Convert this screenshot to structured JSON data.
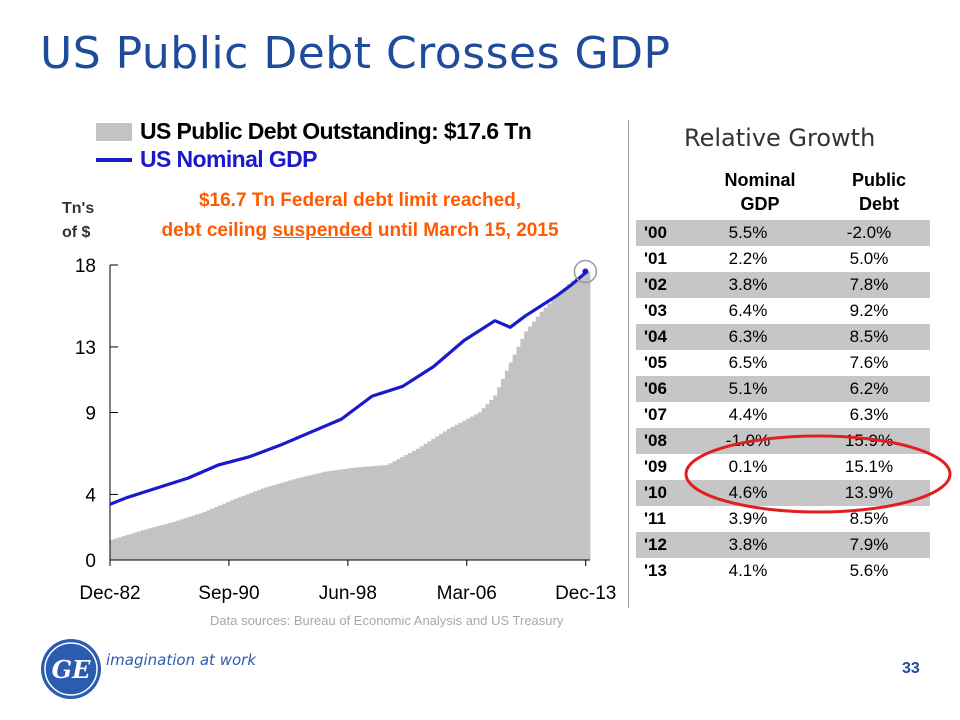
{
  "slide": {
    "title": "US Public Debt Crosses GDP",
    "page_number": "33",
    "source_note": "Data sources:  Bureau of Economic Analysis and US Treasury",
    "logo_tagline": "imagination at work",
    "logo_mark": "GE",
    "accent_color": "#1e4b9c"
  },
  "chart_data": {
    "type": "bar",
    "legend": {
      "bars": "US Public Debt Outstanding: $17.6 Tn",
      "line": "US Nominal GDP"
    },
    "annotation": {
      "line1": "$16.7 Tn Federal debt limit reached,",
      "line2_pre": "debt ceiling ",
      "line2_underlined": "suspended",
      "line2_post": " until March 15, 2015"
    },
    "ylabel": {
      "line1": "Tn's",
      "line2": "of $"
    },
    "y_ticks": [
      "0",
      "4",
      "9",
      "13",
      "18"
    ],
    "x_ticks": [
      "Dec-82",
      "Sep-90",
      "Jun-98",
      "Mar-06",
      "Dec-13"
    ],
    "xlim": [
      1982.92,
      2014.2
    ],
    "ylim": [
      0,
      18
    ],
    "series": [
      {
        "name": "US Public Debt Outstanding: $17.6 Tn",
        "kind": "bar",
        "color": "#c3c3c3",
        "points": [
          [
            1982.92,
            1.2
          ],
          [
            1985,
            1.8
          ],
          [
            1987,
            2.3
          ],
          [
            1989,
            2.9
          ],
          [
            1991,
            3.7
          ],
          [
            1993,
            4.4
          ],
          [
            1995,
            4.95
          ],
          [
            1997,
            5.4
          ],
          [
            1999,
            5.65
          ],
          [
            2001,
            5.8
          ],
          [
            2003,
            6.8
          ],
          [
            2005,
            8.0
          ],
          [
            2007,
            9.0
          ],
          [
            2008,
            10.0
          ],
          [
            2009,
            12.0
          ],
          [
            2010,
            13.9
          ],
          [
            2011,
            15.1
          ],
          [
            2012,
            16.1
          ],
          [
            2013,
            17.0
          ],
          [
            2014,
            17.6
          ]
        ]
      },
      {
        "name": "US Nominal GDP",
        "kind": "line",
        "color": "#1a1acc",
        "points": [
          [
            1982.92,
            3.4
          ],
          [
            1984,
            3.8
          ],
          [
            1986,
            4.4
          ],
          [
            1988,
            5.0
          ],
          [
            1990,
            5.8
          ],
          [
            1992,
            6.3
          ],
          [
            1994,
            7.0
          ],
          [
            1996,
            7.8
          ],
          [
            1998,
            8.6
          ],
          [
            2000,
            10.0
          ],
          [
            2002,
            10.6
          ],
          [
            2004,
            11.8
          ],
          [
            2006,
            13.4
          ],
          [
            2008,
            14.6
          ],
          [
            2009,
            14.2
          ],
          [
            2010,
            14.9
          ],
          [
            2012,
            16.1
          ],
          [
            2013,
            16.8
          ],
          [
            2014,
            17.6
          ]
        ]
      }
    ],
    "highlight_marker": [
      2013.9,
      17.6
    ]
  },
  "growth_table": {
    "title": "Relative Growth",
    "col1_head": [
      "Nominal",
      "GDP"
    ],
    "col2_head": [
      "Public",
      "Debt"
    ],
    "rows": [
      {
        "year": "'00",
        "gdp": "5.5%",
        "debt": "-2.0%"
      },
      {
        "year": "'01",
        "gdp": "2.2%",
        "debt": "5.0%"
      },
      {
        "year": "'02",
        "gdp": "3.8%",
        "debt": "7.8%"
      },
      {
        "year": "'03",
        "gdp": "6.4%",
        "debt": "9.2%"
      },
      {
        "year": "'04",
        "gdp": "6.3%",
        "debt": "8.5%"
      },
      {
        "year": "'05",
        "gdp": "6.5%",
        "debt": "7.6%"
      },
      {
        "year": "'06",
        "gdp": "5.1%",
        "debt": "6.2%"
      },
      {
        "year": "'07",
        "gdp": "4.4%",
        "debt": "6.3%"
      },
      {
        "year": "'08",
        "gdp": "-1.0%",
        "debt": "15.9%"
      },
      {
        "year": "'09",
        "gdp": "0.1%",
        "debt": "15.1%"
      },
      {
        "year": "'10",
        "gdp": "4.6%",
        "debt": "13.9%"
      },
      {
        "year": "'11",
        "gdp": "3.9%",
        "debt": "8.5%"
      },
      {
        "year": "'12",
        "gdp": "3.8%",
        "debt": "7.9%"
      },
      {
        "year": "'13",
        "gdp": "4.1%",
        "debt": "5.6%"
      }
    ],
    "circled_rows": [
      "'08",
      "'09",
      "'10"
    ],
    "circle_color": "#e02020"
  }
}
